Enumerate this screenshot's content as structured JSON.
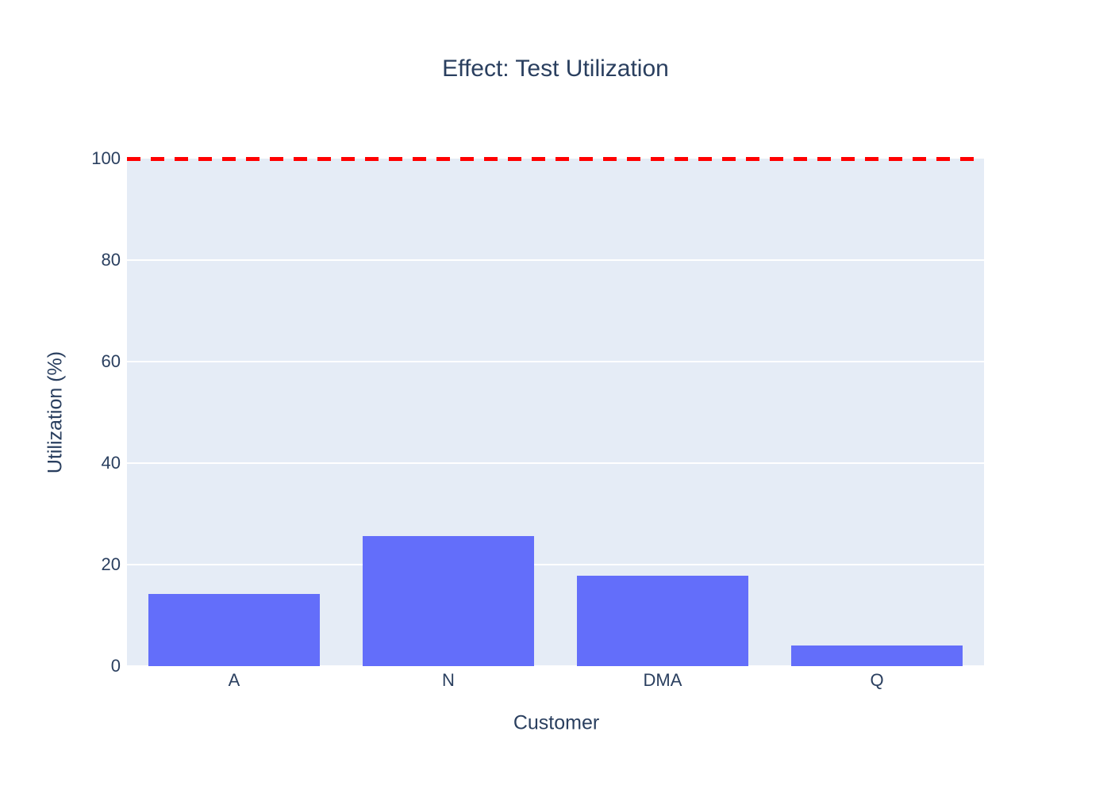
{
  "chart_data": {
    "type": "bar",
    "title": "Effect: Test Utilization",
    "xlabel": "Customer",
    "ylabel": "Utilization (%)",
    "categories": [
      "A",
      "N",
      "DMA",
      "Q"
    ],
    "values": [
      14.2,
      25.6,
      17.8,
      4.1
    ],
    "ylim": [
      0,
      100
    ],
    "yticks": [
      0,
      20,
      40,
      60,
      80,
      100
    ],
    "grid": true,
    "legend": "none",
    "reference_line": {
      "y": 100,
      "style": "dashed",
      "color": "#FF0000"
    },
    "bar_color": "#636EFA",
    "plot_bg": "#E5ECF6",
    "grid_color": "#FFFFFF",
    "text_color": "#2A3F5F"
  }
}
